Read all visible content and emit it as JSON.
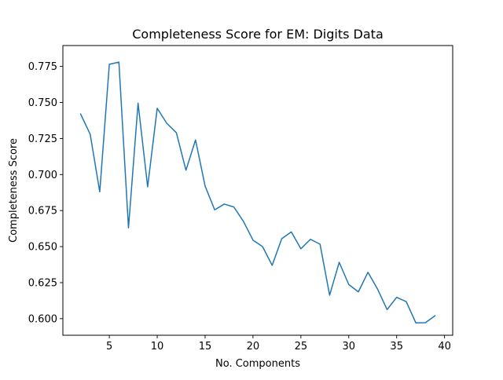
{
  "chart_data": {
    "type": "line",
    "title": "Completeness Score for EM: Digits Data",
    "xlabel": "No. Components",
    "ylabel": "Completeness Score",
    "xlim": [
      0.15,
      40.85
    ],
    "ylim": [
      0.5885,
      0.7895
    ],
    "grid": false,
    "xticks": [
      5,
      10,
      15,
      20,
      25,
      30,
      35,
      40
    ],
    "xtick_labels": [
      "5",
      "10",
      "15",
      "20",
      "25",
      "30",
      "35",
      "40"
    ],
    "yticks": [
      0.6,
      0.625,
      0.65,
      0.675,
      0.7,
      0.725,
      0.75,
      0.775
    ],
    "ytick_labels": [
      "0.600",
      "0.625",
      "0.650",
      "0.675",
      "0.700",
      "0.725",
      "0.750",
      "0.775"
    ],
    "series": [
      {
        "color": "#1f77b4",
        "x": [
          2,
          3,
          4,
          5,
          6,
          7,
          8,
          9,
          10,
          11,
          12,
          13,
          14,
          15,
          16,
          17,
          18,
          19,
          20,
          21,
          22,
          23,
          24,
          25,
          26,
          27,
          28,
          29,
          30,
          31,
          32,
          33,
          34,
          35,
          36,
          37,
          38,
          39
        ],
        "y": [
          0.742,
          0.728,
          0.688,
          0.7765,
          0.778,
          0.663,
          0.7495,
          0.6915,
          0.746,
          0.7355,
          0.729,
          0.703,
          0.724,
          0.692,
          0.6755,
          0.6795,
          0.6775,
          0.6675,
          0.6545,
          0.65,
          0.637,
          0.6555,
          0.6602,
          0.6485,
          0.6551,
          0.6517,
          0.6163,
          0.6391,
          0.6237,
          0.6186,
          0.6322,
          0.6206,
          0.6063,
          0.6148,
          0.6118,
          0.5971,
          0.5972,
          0.602
        ]
      }
    ]
  }
}
